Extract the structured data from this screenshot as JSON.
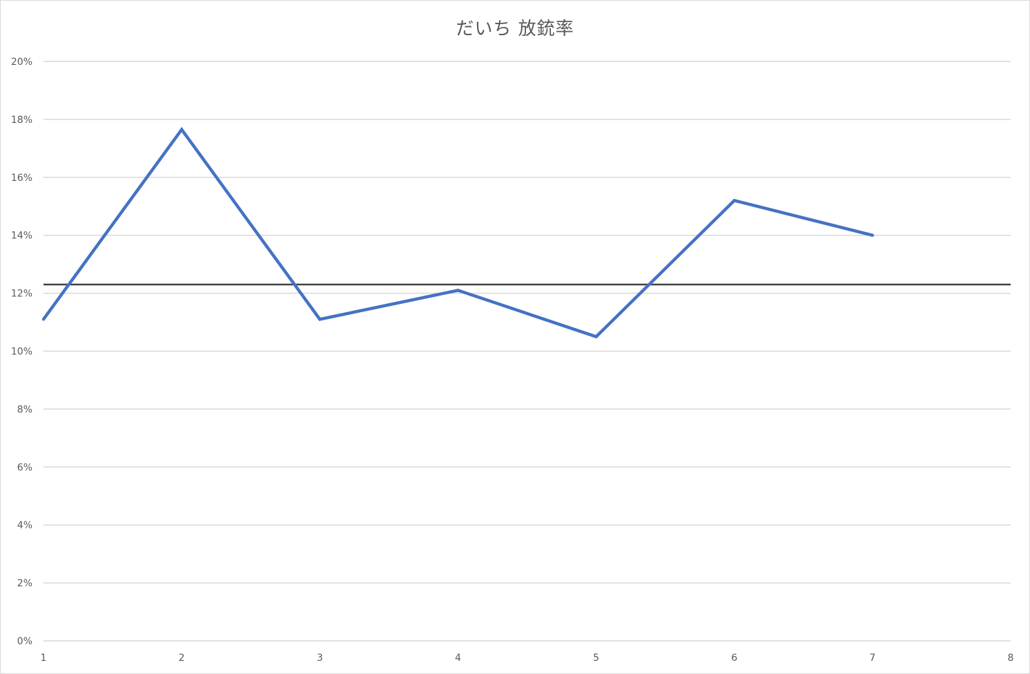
{
  "chart_data": {
    "type": "line",
    "title": "だいち 放銃率",
    "xlabel": "",
    "ylabel": "",
    "x_ticks": [
      "1",
      "2",
      "3",
      "4",
      "5",
      "6",
      "7",
      "8"
    ],
    "xlim": [
      1,
      8
    ],
    "y_ticks": [
      "0%",
      "2%",
      "4%",
      "6%",
      "8%",
      "10%",
      "12%",
      "14%",
      "16%",
      "18%",
      "20%"
    ],
    "ylim": [
      0,
      20
    ],
    "grid": true,
    "legend": "none",
    "series": [
      {
        "color": "#4472c4",
        "x": [
          1,
          2,
          3,
          4,
          5,
          6,
          7
        ],
        "values": [
          11.1,
          17.65,
          11.1,
          12.1,
          10.5,
          15.2,
          14.0
        ]
      }
    ],
    "reference_line": {
      "value": 12.3,
      "color": "#404040"
    },
    "colors": {
      "gridline": "#d9d9d9",
      "text": "#595959"
    }
  }
}
